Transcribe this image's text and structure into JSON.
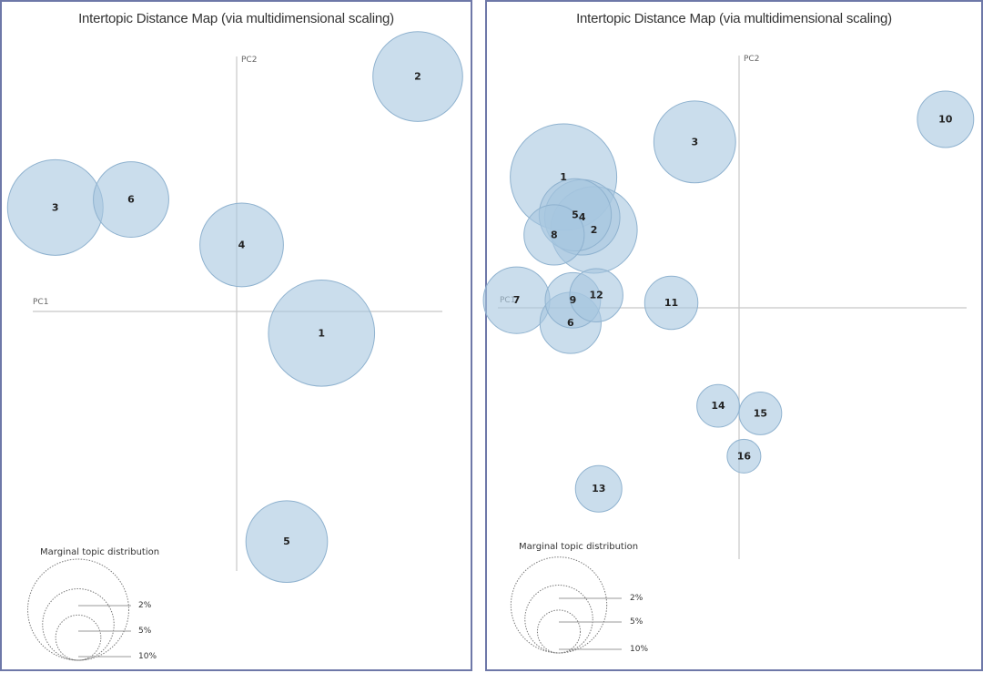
{
  "chart_data": [
    {
      "type": "scatter",
      "subtype": "bubble",
      "title": "Intertopic Distance Map (via multidimensional scaling)",
      "xlabel": "PC1",
      "ylabel": "PC2",
      "xlim": [
        -1,
        1
      ],
      "ylim": [
        -1,
        1
      ],
      "topics": [
        {
          "label": "1",
          "x": 0.41,
          "y": -0.11,
          "size": 10.5
        },
        {
          "label": "2",
          "x": 0.88,
          "y": 0.85,
          "size": 7.5
        },
        {
          "label": "3",
          "x": -0.89,
          "y": 0.36,
          "size": 8.5
        },
        {
          "label": "4",
          "x": 0.02,
          "y": 0.22,
          "size": 6.5
        },
        {
          "label": "5",
          "x": 0.24,
          "y": -0.89,
          "size": 6.2
        },
        {
          "label": "6",
          "x": -0.52,
          "y": 0.39,
          "size": 5.3
        }
      ],
      "legend": {
        "title": "Marginal topic distribution",
        "items": [
          "2%",
          "5%",
          "10%"
        ]
      }
    },
    {
      "type": "scatter",
      "subtype": "bubble",
      "title": "Intertopic Distance Map (via multidimensional scaling)",
      "xlabel": "PC1",
      "ylabel": "PC2",
      "xlim": [
        -1,
        1
      ],
      "ylim": [
        -1,
        1
      ],
      "topics": [
        {
          "label": "1",
          "x": -0.72,
          "y": 0.52,
          "size": 10.0
        },
        {
          "label": "2",
          "x": -0.59,
          "y": 0.31,
          "size": 6.6
        },
        {
          "label": "3",
          "x": -0.16,
          "y": 0.66,
          "size": 5.9
        },
        {
          "label": "4",
          "x": -0.64,
          "y": 0.36,
          "size": 5.0
        },
        {
          "label": "5",
          "x": -0.67,
          "y": 0.37,
          "size": 4.6
        },
        {
          "label": "6",
          "x": -0.69,
          "y": -0.06,
          "size": 3.3
        },
        {
          "label": "7",
          "x": -0.92,
          "y": 0.03,
          "size": 3.9
        },
        {
          "label": "8",
          "x": -0.76,
          "y": 0.29,
          "size": 3.2
        },
        {
          "label": "9",
          "x": -0.68,
          "y": 0.03,
          "size": 2.7
        },
        {
          "label": "10",
          "x": 0.91,
          "y": 0.75,
          "size": 2.8
        },
        {
          "label": "11",
          "x": -0.26,
          "y": 0.02,
          "size": 2.5
        },
        {
          "label": "12",
          "x": -0.58,
          "y": 0.05,
          "size": 2.5
        },
        {
          "label": "13",
          "x": -0.57,
          "y": -0.72,
          "size": 1.9
        },
        {
          "label": "14",
          "x": -0.06,
          "y": -0.39,
          "size": 1.6
        },
        {
          "label": "15",
          "x": 0.12,
          "y": -0.42,
          "size": 1.6
        },
        {
          "label": "16",
          "x": 0.05,
          "y": -0.59,
          "size": 1.0
        }
      ],
      "legend": {
        "title": "Marginal topic distribution",
        "items": [
          "2%",
          "5%",
          "10%"
        ]
      }
    }
  ]
}
